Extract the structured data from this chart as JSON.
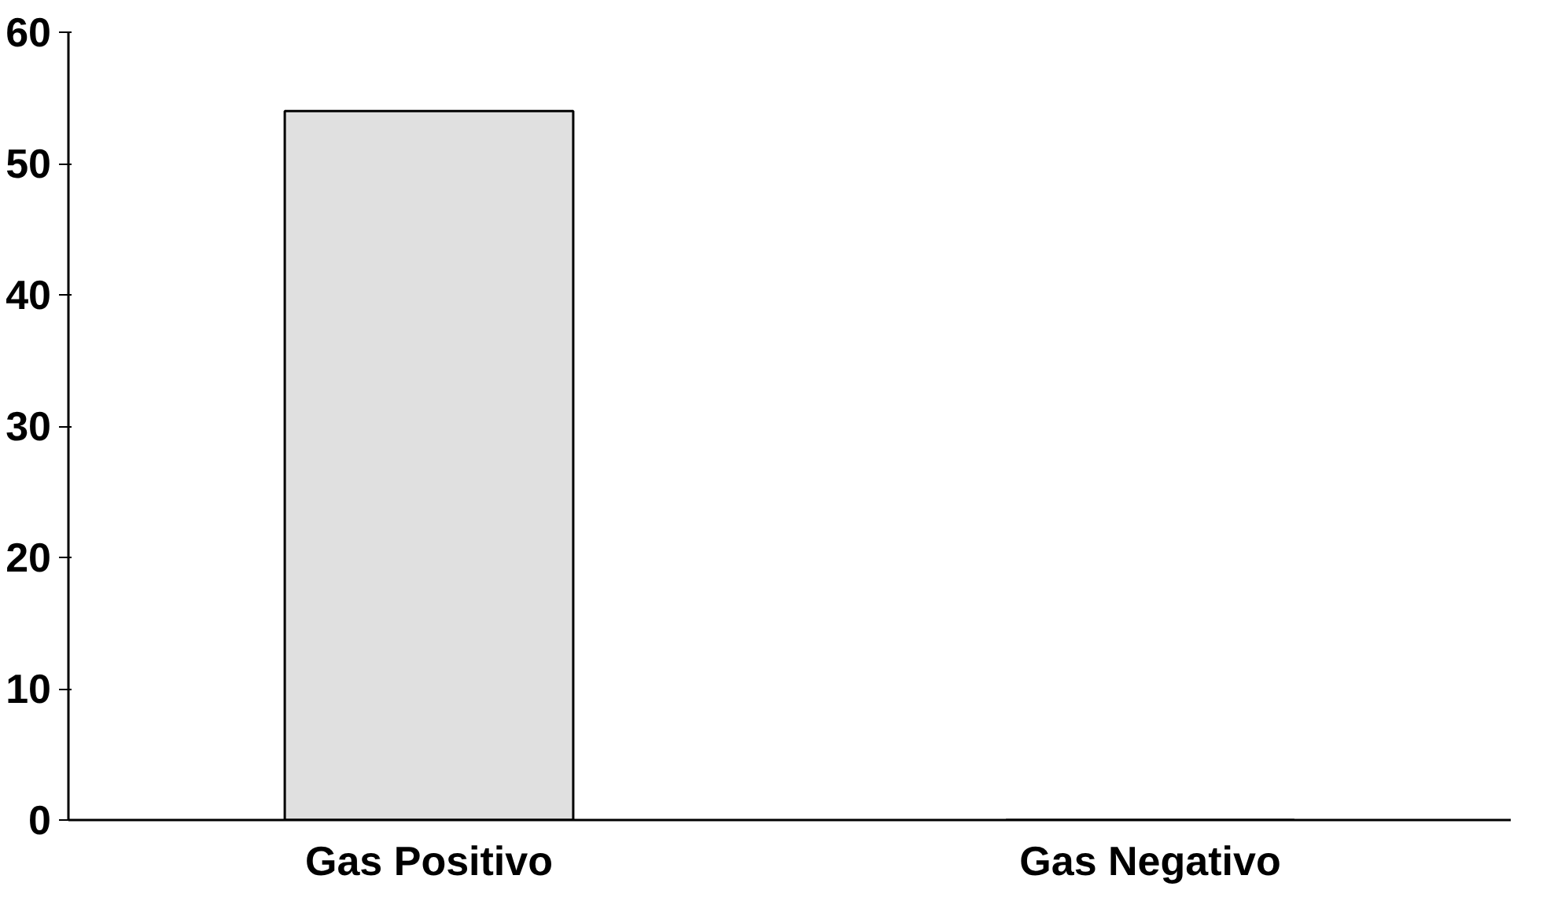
{
  "chart_data": {
    "type": "bar",
    "categories": [
      "Gas Positivo",
      "Gas Negativo"
    ],
    "values": [
      54,
      0
    ],
    "color": "#e0e0e0",
    "ylim": [
      0,
      60
    ],
    "yticks": [
      0,
      10,
      20,
      30,
      40,
      50,
      60
    ],
    "grid": false
  }
}
